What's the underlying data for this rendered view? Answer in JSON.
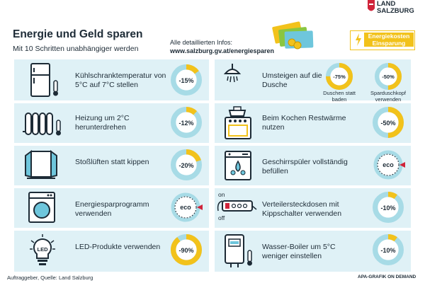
{
  "header": {
    "title": "Energie und Geld sparen",
    "subtitle": "Mit 10 Schritten unabhängiger werden",
    "info_label": "Alle detaillierten Infos:",
    "info_url": "www.salzburg.gv.at/energiesparen"
  },
  "logo": {
    "line1": "LAND",
    "line2": "SALZBURG"
  },
  "legend": {
    "line1": "Energiekosten",
    "line2": "Einsparung",
    "icon": "lightning-icon",
    "color": "#f2c21b"
  },
  "colors": {
    "savings": "#f2c21b",
    "remainder": "#a7dbe6",
    "panel": "#dff1f6",
    "eco_arrow": "#d0243a"
  },
  "tips": [
    {
      "label": "Kühlschranktemperatur von 5°C auf 7°C stellen",
      "icon": "fridge-icon",
      "value": "-15%",
      "fraction": 0.15
    },
    {
      "label": "Heizung um 2°C herunterdrehen",
      "icon": "radiator-icon",
      "value": "-12%",
      "fraction": 0.12
    },
    {
      "label": "Stoßlüften statt kippen",
      "icon": "window-icon",
      "value": "-20%",
      "fraction": 0.2
    },
    {
      "label": "Energiesparprogramm verwenden",
      "icon": "washing-machine-icon",
      "value": "eco",
      "fraction": null
    },
    {
      "label": "LED-Produkte verwenden",
      "icon": "led-bulb-icon",
      "value": "-90%",
      "fraction": 0.9
    },
    {
      "label": "Umsteigen auf die Dusche",
      "icon": "shower-icon",
      "gauges": [
        {
          "value": "-75%",
          "fraction": 0.75,
          "caption": "Duschen statt baden"
        },
        {
          "value": "-50%",
          "fraction": 0.5,
          "caption": "Sparduschkopf verwenden"
        }
      ]
    },
    {
      "label": "Beim Kochen Restwärme nutzen",
      "icon": "stove-icon",
      "value": "-50%",
      "fraction": 0.5
    },
    {
      "label": "Geschirrspüler vollständig befüllen",
      "icon": "dishwasher-icon",
      "value": "eco",
      "fraction": null
    },
    {
      "label": "Verteilersteckdosen mit Kippschalter verwenden",
      "icon": "power-strip-icon",
      "value": "-10%",
      "fraction": 0.1,
      "switch_on": "on",
      "switch_off": "off"
    },
    {
      "label": "Wasser-Boiler um 5°C weniger einstellen",
      "icon": "boiler-icon",
      "value": "-10%",
      "fraction": 0.1
    }
  ],
  "footer": {
    "source": "Auftraggeber, Quelle: Land Salzburg",
    "credit": "APA-GRAFIK ON DEMAND"
  }
}
